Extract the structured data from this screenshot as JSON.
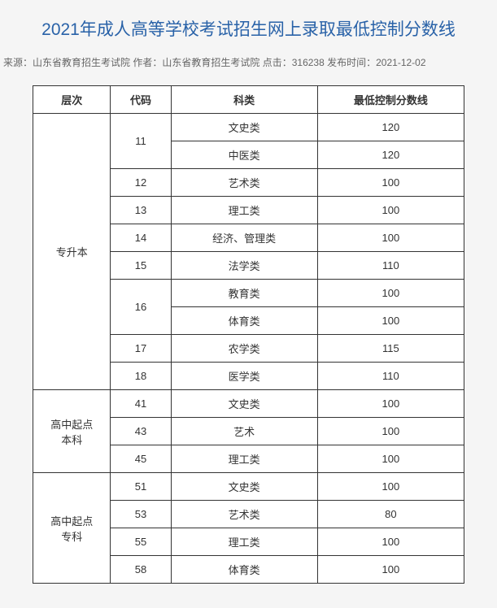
{
  "title": "2021年成人高等学校考试招生网上录取最低控制分数线",
  "meta": {
    "source_label": "来源：",
    "source": "山东省教育招生考试院",
    "author_label": " 作者：",
    "author": "山东省教育招生考试院",
    "clicks_label": " 点击：",
    "clicks": "316238",
    "time_label": " 发布时间：",
    "time": "2021-12-02"
  },
  "headers": {
    "level": "层次",
    "code": "代码",
    "category": "科类",
    "score": "最低控制分数线"
  },
  "groups": [
    {
      "level": "专升本",
      "rows": [
        {
          "code": "11",
          "code_span": 2,
          "category": "文史类",
          "score": "120"
        },
        {
          "category": "中医类",
          "score": "120"
        },
        {
          "code": "12",
          "code_span": 1,
          "category": "艺术类",
          "score": "100"
        },
        {
          "code": "13",
          "code_span": 1,
          "category": "理工类",
          "score": "100"
        },
        {
          "code": "14",
          "code_span": 1,
          "category": "经济、管理类",
          "score": "100"
        },
        {
          "code": "15",
          "code_span": 1,
          "category": "法学类",
          "score": "110"
        },
        {
          "code": "16",
          "code_span": 2,
          "category": "教育类",
          "score": "100"
        },
        {
          "category": "体育类",
          "score": "100"
        },
        {
          "code": "17",
          "code_span": 1,
          "category": "农学类",
          "score": "115"
        },
        {
          "code": "18",
          "code_span": 1,
          "category": "医学类",
          "score": "110"
        }
      ]
    },
    {
      "level": "高中起点本科",
      "rows": [
        {
          "code": "41",
          "code_span": 1,
          "category": "文史类",
          "score": "100"
        },
        {
          "code": "43",
          "code_span": 1,
          "category": "艺术",
          "score": "100"
        },
        {
          "code": "45",
          "code_span": 1,
          "category": "理工类",
          "score": "100"
        }
      ]
    },
    {
      "level": "高中起点专科",
      "rows": [
        {
          "code": "51",
          "code_span": 1,
          "category": "文史类",
          "score": "100"
        },
        {
          "code": "53",
          "code_span": 1,
          "category": "艺术类",
          "score": "80"
        },
        {
          "code": "55",
          "code_span": 1,
          "category": "理工类",
          "score": "100"
        },
        {
          "code": "58",
          "code_span": 1,
          "category": "体育类",
          "score": "100"
        }
      ]
    }
  ],
  "col_widths": [
    "18%",
    "14%",
    "34%",
    "34%"
  ],
  "colors": {
    "title": "#2962a8",
    "meta": "#666666",
    "border": "#333333",
    "background": "#f5f5f5",
    "cell_bg": "#ffffff"
  }
}
